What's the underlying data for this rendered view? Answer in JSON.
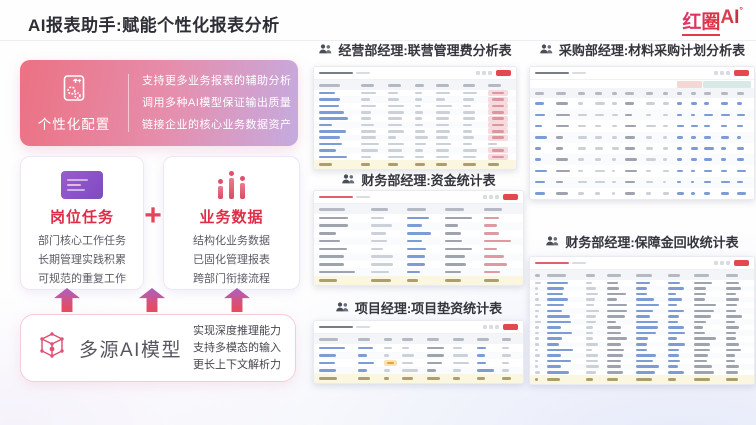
{
  "colors": {
    "accent_red": "#E23A4E",
    "card_gradient_start": "#EC7183",
    "card_gradient_end": "#C5ABE0",
    "link_blue": "#7D9CD6",
    "table_button_red": "#E4484F",
    "total_row_bg": "#FBF6E0",
    "arrow_gradient_top": "#AA60C8",
    "arrow_gradient_bottom": "#EA4A59"
  },
  "header": {
    "title": "AI报表助手:赋能个性化报表分析",
    "logo": {
      "brand": "红圈",
      "suffix": "AI",
      "mark": "°"
    }
  },
  "config_card": {
    "label": "个性化配置",
    "icon": "document-gears-icon",
    "points": [
      "支持更多业务报表的辅助分析",
      "调用多种AI模型保证输出质量",
      "链接企业的核心业务数据资产"
    ]
  },
  "job_card": {
    "title": "岗位任务",
    "icon": "screenshot-icon",
    "points": [
      "部门核心工作任务",
      "长期管理实践积累",
      "可规范的重复工作"
    ]
  },
  "plus": "+",
  "data_card": {
    "title": "业务数据",
    "icon": "bar-chart-icon",
    "points": [
      "结构化业务数据",
      "已固化管理报表",
      "跨部门衔接流程"
    ]
  },
  "model_card": {
    "title": "多源AI模型",
    "icon": "cube-icon",
    "points": [
      "实现深度推理能力",
      "支持多模态的输入",
      "更长上下文解析力"
    ]
  },
  "reports": [
    {
      "title": "经营部经理:联营管理费分析表",
      "table": {
        "toolbar": {
          "left": "dark",
          "button": true
        },
        "rows": 11,
        "total": true,
        "columns": [
          {
            "f": 2.0,
            "c": "blue"
          },
          {
            "f": 1.2,
            "c": "gray"
          },
          {
            "f": 1.2,
            "c": "gray"
          },
          {
            "f": 0.9,
            "c": "gray"
          },
          {
            "f": 1.2,
            "c": "gray"
          },
          {
            "f": 1.1,
            "c": "gray"
          },
          {
            "f": 1.2,
            "c": "gray",
            "chip": "#f6dade",
            "chipbar": "#db96a0"
          }
        ]
      }
    },
    {
      "title": "采购部经理:材料采购计划分析表",
      "table": {
        "toolbar": {
          "left": "dark",
          "button": true
        },
        "group": [
          {
            "f": 5.95
          },
          {
            "f": 1.05,
            "c": "pink"
          },
          {
            "f": 2.0,
            "c": "teal"
          }
        ],
        "rows": 9,
        "total": false,
        "columns": [
          {
            "f": 0.9,
            "c": "blue"
          },
          {
            "f": 1.0,
            "c": "dark"
          },
          {
            "f": 0.7,
            "c": "gray"
          },
          {
            "f": 0.7,
            "c": "gray"
          },
          {
            "f": 0.5,
            "c": "gray"
          },
          {
            "f": 0.9,
            "c": "dark"
          },
          {
            "f": 0.7,
            "c": "gray"
          },
          {
            "f": 0.55,
            "c": "gray"
          },
          {
            "f": 0.55,
            "c": "blue"
          },
          {
            "f": 0.5,
            "c": "blue"
          },
          {
            "f": 0.7,
            "c": "blue"
          },
          {
            "f": 0.65,
            "c": "blue"
          },
          {
            "f": 0.65,
            "c": "blue"
          }
        ]
      }
    },
    {
      "title": "财务部经理:资金统计表",
      "table": {
        "toolbar": {
          "left": "red",
          "button": true
        },
        "rows": 8,
        "total": true,
        "columns": [
          {
            "f": 1.8,
            "c": "dark"
          },
          {
            "f": 1.2,
            "c": "gray"
          },
          {
            "f": 1.3,
            "c": "blue"
          },
          {
            "f": 1.3,
            "c": "dark"
          },
          {
            "f": 1.3,
            "c": "red"
          }
        ]
      }
    },
    {
      "title": "财务部经理:保障金回收统计表",
      "table": {
        "toolbar": {
          "left": "red",
          "button": true
        },
        "rows": 17,
        "total": true,
        "columns": [
          {
            "f": 0.35,
            "c": "gray"
          },
          {
            "f": 1.5,
            "c": "blue"
          },
          {
            "f": 0.7,
            "c": "gray"
          },
          {
            "f": 1.1,
            "c": "dark"
          },
          {
            "f": 1.2,
            "c": "blue"
          },
          {
            "f": 0.9,
            "c": "blue"
          },
          {
            "f": 1.2,
            "c": "dark"
          },
          {
            "f": 1.0,
            "c": "dark"
          }
        ]
      }
    },
    {
      "title": "项目经理:项目垫资统计表",
      "table": {
        "toolbar": {
          "left": "dark",
          "button": true
        },
        "rows": 4,
        "total": true,
        "columns": [
          {
            "f": 1.7,
            "c": "blue"
          },
          {
            "f": 1.1,
            "c": "blue"
          },
          {
            "f": 0.7,
            "c": "gray",
            "chip": "#fbe2ae",
            "chipbar": "#e3a23f"
          },
          {
            "f": 1.0,
            "c": "gray"
          },
          {
            "f": 1.1,
            "c": "dark"
          },
          {
            "f": 1.0,
            "c": "gray"
          },
          {
            "f": 1.0,
            "c": "blue"
          },
          {
            "f": 0.8,
            "c": "gray"
          }
        ]
      }
    }
  ]
}
